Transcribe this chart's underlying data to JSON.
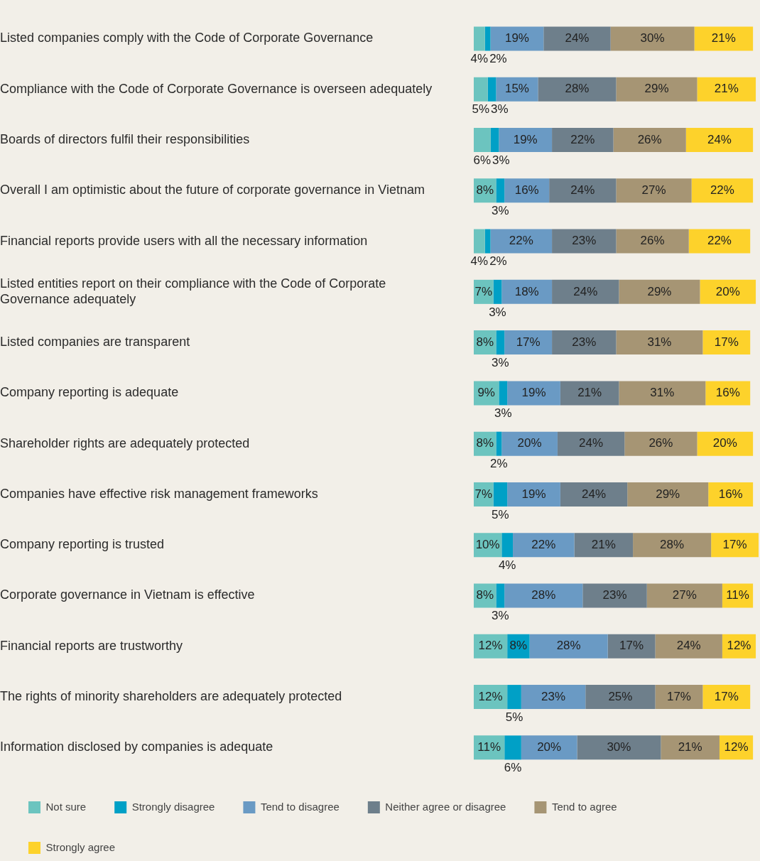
{
  "chart_data": {
    "type": "bar",
    "orientation": "horizontal",
    "stacked": true,
    "legend": "bottom",
    "tick_labels": "y",
    "categories": [
      "Listed companies comply with the Code of Corporate Governance",
      "Compliance with the Code of Corporate Governance is overseen adequately",
      "Boards of directors fulfil their responsibilities",
      "Overall I am optimistic about the future of corporate governance in Vietnam",
      "Financial reports provide users with all the necessary information",
      "Listed entities report on their compliance with the Code of Corporate Governance adequately",
      "Listed companies are transparent",
      "Company reporting is adequate",
      "Shareholder rights are adequately protected",
      "Companies have effective risk management frameworks",
      "Company reporting is trusted",
      "Corporate governance in Vietnam is effective",
      "Financial reports are trustworthy",
      "The rights of minority shareholders are adequately protected",
      "Information disclosed by companies is adequate"
    ],
    "series": [
      {
        "name": "Not sure",
        "color": "#6cc4bf",
        "values": [
          4,
          5,
          6,
          8,
          4,
          7,
          8,
          9,
          8,
          7,
          10,
          8,
          12,
          12,
          11
        ],
        "value_labels": [
          "4%",
          "5%",
          "6%",
          "8%",
          "4%",
          "7%",
          "8%",
          "9%",
          "8%",
          "7%",
          "10%",
          "8%",
          "12%",
          "12%",
          "11%"
        ]
      },
      {
        "name": "Strongly disagree",
        "color": "#00a0c6",
        "values": [
          2,
          3,
          3,
          3,
          2,
          3,
          3,
          3,
          2,
          5,
          4,
          3,
          8,
          5,
          6
        ],
        "value_labels": [
          "2%",
          "3%",
          "3%",
          "3%",
          "2%",
          "3%",
          "3%",
          "3%",
          "2%",
          "5%",
          "4%",
          "3%",
          "8%",
          "5%",
          "6%"
        ]
      },
      {
        "name": "Tend to disagree",
        "color": "#6a9ac4",
        "values": [
          19,
          15,
          19,
          16,
          22,
          18,
          17,
          19,
          20,
          19,
          22,
          28,
          28,
          23,
          20
        ],
        "value_labels": [
          "19%",
          "15%",
          "19%",
          "16%",
          "22%",
          "18%",
          "17%",
          "19%",
          "20%",
          "19%",
          "22%",
          "28%",
          "28%",
          "23%",
          "20%"
        ]
      },
      {
        "name": "Neither agree or disagree",
        "color": "#6e7f8b",
        "values": [
          24,
          28,
          22,
          24,
          23,
          24,
          23,
          21,
          24,
          24,
          21,
          23,
          17,
          25,
          30
        ],
        "value_labels": [
          "24%",
          "28%",
          "22%",
          "24%",
          "23%",
          "24%",
          "23%",
          "21%",
          "24%",
          "24%",
          "21%",
          "23%",
          "17%",
          "25%",
          "30%"
        ]
      },
      {
        "name": "Tend to agree",
        "color": "#a69574",
        "values": [
          30,
          29,
          26,
          27,
          26,
          29,
          31,
          31,
          26,
          29,
          28,
          27,
          24,
          17,
          21
        ],
        "value_labels": [
          "30%",
          "29%",
          "26%",
          "27%",
          "26%",
          "29%",
          "31%",
          "31%",
          "26%",
          "29%",
          "28%",
          "27%",
          "24%",
          "17%",
          "21%"
        ]
      },
      {
        "name": "Strongly agree",
        "color": "#fdd22b",
        "values": [
          21,
          21,
          24,
          22,
          22,
          20,
          17,
          16,
          20,
          16,
          17,
          11,
          12,
          17,
          12
        ],
        "value_labels": [
          "21%",
          "21%",
          "24%",
          "22%",
          "22%",
          "20%",
          "17%",
          "16%",
          "20%",
          "16%",
          "17%",
          "11%",
          "12%",
          "17%",
          "12%"
        ]
      }
    ]
  }
}
